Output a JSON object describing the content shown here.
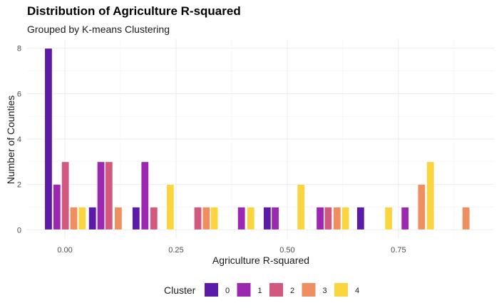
{
  "chart_data": {
    "type": "bar",
    "title": "Distribution of Agriculture R-squared",
    "subtitle": "Grouped by K-means Clustering",
    "xlabel": "Agriculture R-squared",
    "ylabel": "Number of Counties",
    "xlim": [
      -0.085,
      0.965
    ],
    "ylim": [
      -0.4,
      8.4
    ],
    "x_ticks": [
      0.0,
      0.25,
      0.5,
      0.75
    ],
    "x_tick_labels": [
      "0.00",
      "0.25",
      "0.50",
      "0.75"
    ],
    "y_ticks": [
      0,
      2,
      4,
      6,
      8
    ],
    "y_tick_labels": [
      "0",
      "2",
      "4",
      "6",
      "8"
    ],
    "bar_width": 0.017,
    "grid": true,
    "legend": {
      "title": "Cluster",
      "position": "bottom"
    },
    "series": [
      {
        "name": "0",
        "color": "#5C1AA8",
        "points": [
          {
            "x": -0.037,
            "y": 8
          },
          {
            "x": 0.062,
            "y": 1
          },
          {
            "x": 0.16,
            "y": 1
          },
          {
            "x": 0.455,
            "y": 1
          },
          {
            "x": 0.665,
            "y": 1
          }
        ]
      },
      {
        "name": "1",
        "color": "#9C28B2",
        "points": [
          {
            "x": -0.018,
            "y": 2
          },
          {
            "x": 0.081,
            "y": 3
          },
          {
            "x": 0.18,
            "y": 3
          },
          {
            "x": 0.397,
            "y": 1
          },
          {
            "x": 0.473,
            "y": 1
          },
          {
            "x": 0.574,
            "y": 1
          },
          {
            "x": 0.765,
            "y": 1
          }
        ]
      },
      {
        "name": "2",
        "color": "#D2587F",
        "points": [
          {
            "x": 0.001,
            "y": 3
          },
          {
            "x": 0.099,
            "y": 3
          },
          {
            "x": 0.2,
            "y": 1
          },
          {
            "x": 0.299,
            "y": 1
          },
          {
            "x": 0.592,
            "y": 1
          }
        ]
      },
      {
        "name": "3",
        "color": "#EF8E5E",
        "points": [
          {
            "x": 0.02,
            "y": 1
          },
          {
            "x": 0.12,
            "y": 1
          },
          {
            "x": 0.318,
            "y": 1
          },
          {
            "x": 0.612,
            "y": 1
          },
          {
            "x": 0.802,
            "y": 2
          },
          {
            "x": 0.902,
            "y": 1
          }
        ]
      },
      {
        "name": "4",
        "color": "#FAD53F",
        "points": [
          {
            "x": 0.039,
            "y": 1
          },
          {
            "x": 0.237,
            "y": 2
          },
          {
            "x": 0.336,
            "y": 1
          },
          {
            "x": 0.418,
            "y": 1
          },
          {
            "x": 0.531,
            "y": 2
          },
          {
            "x": 0.631,
            "y": 1
          },
          {
            "x": 0.728,
            "y": 1
          },
          {
            "x": 0.822,
            "y": 3
          }
        ]
      }
    ]
  }
}
